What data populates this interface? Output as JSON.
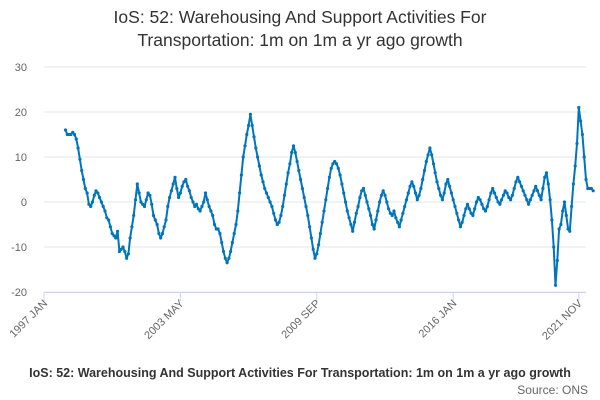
{
  "chart_data": {
    "type": "line",
    "title": "IoS: 52: Warehousing And Support Activities For Transportation: 1m on 1m a yr ago growth",
    "title_lines": [
      "IoS: 52: Warehousing And Support Activities For",
      "Transportation: 1m on 1m a yr ago growth"
    ],
    "xlabel": "",
    "ylabel": "",
    "ylim": [
      -20,
      30
    ],
    "yticks": [
      -20,
      -10,
      0,
      10,
      20,
      30
    ],
    "xrange": [
      "1997 JAN",
      "2022 MAR"
    ],
    "xticks": [
      "1997 JAN",
      "2003 MAY",
      "2009 SEP",
      "2016 JAN",
      "2021 NOV"
    ],
    "legend_position": "bottom",
    "grid": true,
    "colors": {
      "series": "#0075BB",
      "grid": "#e6e6e6",
      "text": "#333333"
    },
    "series": [
      {
        "name": "IoS: 52: Warehousing And Support Activities For Transportation: 1m on 1m a yr ago growth",
        "frequency": "monthly",
        "start": "1998 JAN",
        "values": [
          16,
          15,
          15,
          15,
          15.5,
          15,
          14,
          12,
          9.5,
          7,
          5,
          3,
          2,
          -0.5,
          -1,
          0,
          1.5,
          2.5,
          2,
          1,
          0,
          -1,
          -2,
          -3.5,
          -4,
          -5.5,
          -7,
          -7.5,
          -8,
          -6.5,
          -11,
          -10.5,
          -10,
          -11,
          -12.5,
          -11.5,
          -8,
          -5.5,
          -3,
          0.5,
          4,
          2,
          0,
          -0.5,
          -1,
          0.5,
          2,
          1.5,
          -0.5,
          -3,
          -4,
          -5,
          -7,
          -8,
          -7,
          -5.5,
          -4,
          -1,
          1,
          2.5,
          4,
          5.5,
          3,
          1,
          2,
          3.5,
          4.5,
          5,
          3.5,
          2.5,
          1,
          0,
          -1,
          -0.5,
          -1.5,
          -2,
          -1,
          0,
          2,
          0.5,
          -1,
          -2,
          -3,
          -5,
          -6,
          -6,
          -7,
          -9,
          -11,
          -12.5,
          -13.5,
          -12.5,
          -11,
          -9,
          -7,
          -5,
          -2,
          2,
          6,
          10,
          12.5,
          15,
          17,
          19.5,
          17,
          14.5,
          12,
          10,
          8,
          6,
          4.5,
          3,
          2,
          1,
          0,
          -1,
          -2.5,
          -4,
          -5,
          -4.5,
          -3,
          -1,
          1.5,
          4,
          6.5,
          8.5,
          11,
          12.5,
          11,
          9,
          7,
          5,
          3,
          1,
          -1,
          -3,
          -5.5,
          -8,
          -10.5,
          -12.5,
          -11.5,
          -9.5,
          -7,
          -4.5,
          -2,
          0.5,
          3,
          5.5,
          7.5,
          8.5,
          9,
          8.5,
          7.5,
          6,
          4,
          2,
          0,
          -2,
          -3.5,
          -5,
          -6.5,
          -4.5,
          -2.5,
          -1,
          1,
          2.5,
          3,
          1.5,
          0,
          -1.5,
          -3,
          -5,
          -6,
          -4,
          -2,
          0,
          1.5,
          2.5,
          1.5,
          0,
          -1.5,
          -2.5,
          -3,
          -2,
          -3.5,
          -4.5,
          -5.5,
          -4,
          -2.5,
          -1,
          0.5,
          2,
          3.5,
          4.5,
          3.5,
          2,
          0.5,
          1.5,
          3,
          5,
          7,
          9,
          10.5,
          12,
          10.5,
          8.5,
          6.5,
          4.5,
          3,
          1.5,
          0.5,
          2,
          4,
          5,
          3.5,
          2,
          0.5,
          -1,
          -2.5,
          -4,
          -5.5,
          -4.5,
          -3,
          -1.5,
          -0.5,
          -1.5,
          -2.5,
          -3,
          -1.5,
          0,
          1,
          0.5,
          -0.5,
          -1.5,
          -2,
          -1,
          0.5,
          2,
          3,
          2,
          1,
          0,
          -0.5,
          0.5,
          1.5,
          2.5,
          2,
          1,
          0.5,
          1.5,
          3,
          4.5,
          5.5,
          4.5,
          3.5,
          2.5,
          1.5,
          0.5,
          -0.5,
          0.5,
          1.5,
          2.5,
          3.5,
          2.5,
          1.5,
          0.5,
          3,
          5.5,
          6.5,
          4,
          0.5,
          -4,
          -10,
          -18.5,
          -13,
          -6,
          -5,
          -2,
          0,
          -3,
          -6,
          -6.5,
          -1,
          4,
          8,
          13,
          21,
          18,
          15,
          10,
          5,
          3,
          3,
          3,
          2.5
        ]
      }
    ]
  },
  "credit": "Source: ONS"
}
